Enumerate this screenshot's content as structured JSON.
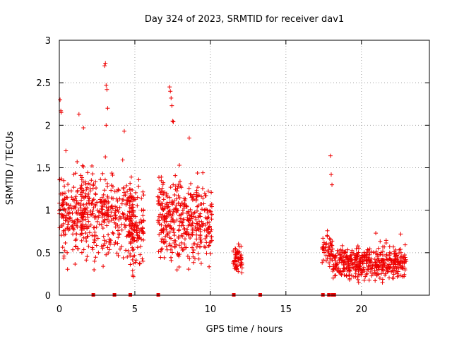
{
  "chart_data": {
    "type": "scatter",
    "title": "Day 324 of 2023, SRMTID for receiver dav1",
    "xlabel": "GPS time / hours",
    "ylabel": "SRMTID / TECUs",
    "xlim": [
      0,
      24.5
    ],
    "ylim": [
      0,
      3
    ],
    "x_ticks": [
      "0",
      "5",
      "10",
      "15",
      "20"
    ],
    "x_tick_values": [
      0,
      5,
      10,
      15,
      20
    ],
    "y_ticks": [
      "0",
      "0.5",
      "1",
      "1.5",
      "2",
      "2.5",
      "3"
    ],
    "y_tick_values": [
      0,
      0.5,
      1,
      1.5,
      2,
      2.5,
      3
    ],
    "grid": true,
    "marker": "+",
    "color": "#ee0000",
    "clusters": [
      {
        "x_range": [
          0.0,
          2.3
        ],
        "y_mean": 0.95,
        "y_spread": 0.55,
        "count": 260
      },
      {
        "x_range": [
          2.3,
          4.9
        ],
        "y_mean": 0.95,
        "y_spread": 0.5,
        "count": 230
      },
      {
        "x_range": [
          4.6,
          5.6
        ],
        "y_mean": 0.8,
        "y_spread": 0.5,
        "count": 120
      },
      {
        "x_range": [
          6.5,
          8.2
        ],
        "y_mean": 0.9,
        "y_spread": 0.55,
        "count": 200
      },
      {
        "x_range": [
          8.2,
          10.1
        ],
        "y_mean": 0.85,
        "y_spread": 0.45,
        "count": 200
      },
      {
        "x_range": [
          11.5,
          12.1
        ],
        "y_mean": 0.42,
        "y_spread": 0.2,
        "count": 60
      },
      {
        "x_range": [
          17.4,
          18.1
        ],
        "y_mean": 0.55,
        "y_spread": 0.2,
        "count": 50
      },
      {
        "x_range": [
          18.1,
          23.0
        ],
        "y_mean": 0.38,
        "y_spread": 0.2,
        "count": 450
      }
    ],
    "spikes": [
      {
        "x": 0.05,
        "y": 2.3
      },
      {
        "x": 0.1,
        "y": 2.17
      },
      {
        "x": 0.12,
        "y": 2.15
      },
      {
        "x": 1.3,
        "y": 2.13
      },
      {
        "x": 1.6,
        "y": 1.97
      },
      {
        "x": 3.0,
        "y": 2.7
      },
      {
        "x": 3.05,
        "y": 2.73
      },
      {
        "x": 3.1,
        "y": 2.47
      },
      {
        "x": 3.15,
        "y": 2.42
      },
      {
        "x": 3.2,
        "y": 2.2
      },
      {
        "x": 3.1,
        "y": 2.0
      },
      {
        "x": 4.3,
        "y": 1.93
      },
      {
        "x": 7.3,
        "y": 2.45
      },
      {
        "x": 7.35,
        "y": 2.4
      },
      {
        "x": 7.4,
        "y": 2.32
      },
      {
        "x": 7.45,
        "y": 2.23
      },
      {
        "x": 7.5,
        "y": 2.05
      },
      {
        "x": 7.55,
        "y": 2.04
      },
      {
        "x": 8.6,
        "y": 1.85
      },
      {
        "x": 17.95,
        "y": 1.64
      },
      {
        "x": 18.0,
        "y": 1.42
      },
      {
        "x": 18.05,
        "y": 1.3
      },
      {
        "x": 20.95,
        "y": 0.73
      },
      {
        "x": 22.6,
        "y": 0.72
      }
    ],
    "zero_points_x": [
      2.25,
      3.65,
      4.7,
      6.55,
      11.55,
      13.3,
      17.45,
      17.85,
      18.1,
      18.2
    ]
  }
}
